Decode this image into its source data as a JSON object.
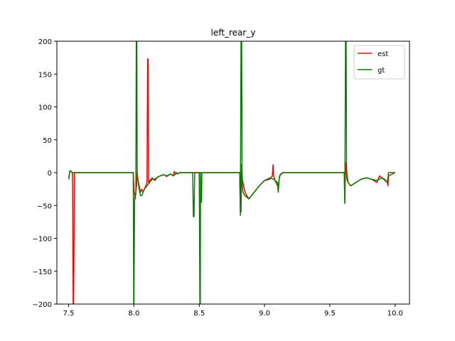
{
  "chart_data": {
    "type": "line",
    "title": "left_rear_y",
    "xlabel": "",
    "ylabel": "",
    "xlim": [
      7.41,
      10.11
    ],
    "ylim": [
      -200,
      200
    ],
    "xticks": [
      7.5,
      8.0,
      8.5,
      9.0,
      9.5,
      10.0
    ],
    "xtick_labels": [
      "7.5",
      "8.0",
      "8.5",
      "9.0",
      "9.5",
      "10.0"
    ],
    "yticks": [
      -200,
      -150,
      -100,
      -50,
      0,
      50,
      100,
      150,
      200
    ],
    "ytick_labels": [
      "−200",
      "−150",
      "−100",
      "−50",
      "0",
      "50",
      "100",
      "150",
      "200"
    ],
    "grid": false,
    "legend_position": "top-right",
    "series": [
      {
        "name": "est",
        "color": "#ff0000",
        "x": [
          7.5,
          7.51,
          7.52,
          7.53,
          7.535,
          7.538,
          7.545,
          7.55,
          7.6,
          7.7,
          7.8,
          7.9,
          7.995,
          8.0,
          8.01,
          8.02,
          8.025,
          8.03,
          8.04,
          8.05,
          8.06,
          8.07,
          8.08,
          8.09,
          8.1,
          8.105,
          8.108,
          8.112,
          8.12,
          8.14,
          8.16,
          8.18,
          8.2,
          8.23,
          8.25,
          8.28,
          8.3,
          8.31,
          8.32,
          8.33,
          8.335,
          8.35,
          8.4,
          8.5,
          8.6,
          8.7,
          8.81,
          8.815,
          8.82,
          8.825,
          8.83,
          8.85,
          8.88,
          8.92,
          8.96,
          9.0,
          9.04,
          9.06,
          9.065,
          9.07,
          9.08,
          9.1,
          9.105,
          9.11,
          9.12,
          9.14,
          9.15,
          9.3,
          9.5,
          9.61,
          9.615,
          9.62,
          9.625,
          9.63,
          9.64,
          9.66,
          9.7,
          9.74,
          9.78,
          9.82,
          9.86,
          9.88,
          9.9,
          9.92,
          9.94,
          9.945,
          9.95,
          10.0
        ],
        "y": [
          -10,
          3,
          2,
          -2,
          -200,
          -200,
          0,
          0,
          0,
          0,
          0,
          0,
          0,
          -25,
          -40,
          -20,
          0,
          -10,
          -20,
          -30,
          -25,
          -30,
          -25,
          -20,
          -15,
          173,
          173,
          -15,
          -12,
          -8,
          -12,
          -7,
          -5,
          -3,
          -6,
          -2,
          -5,
          2,
          -2,
          0,
          -2,
          0,
          0,
          0,
          0,
          0,
          0,
          -60,
          -60,
          12,
          -10,
          -30,
          -40,
          -30,
          -20,
          -12,
          -10,
          -5,
          12,
          -5,
          -12,
          -20,
          -28,
          -12,
          -3,
          0,
          0,
          0,
          0,
          0,
          -45,
          15,
          10,
          -10,
          -15,
          -20,
          -15,
          -10,
          -8,
          -10,
          -15,
          -5,
          -8,
          -10,
          -15,
          -20,
          -5,
          0
        ]
      },
      {
        "name": "gt",
        "color": "#008000",
        "x": [
          7.5,
          7.51,
          7.52,
          7.53,
          7.54,
          7.6,
          7.7,
          7.8,
          7.9,
          7.995,
          7.998,
          8.0,
          8.005,
          8.015,
          8.018,
          8.022,
          8.025,
          8.03,
          8.04,
          8.05,
          8.06,
          8.07,
          8.08,
          8.1,
          8.12,
          8.14,
          8.16,
          8.18,
          8.2,
          8.23,
          8.25,
          8.28,
          8.3,
          8.32,
          8.33,
          8.335,
          8.35,
          8.45,
          8.455,
          8.46,
          8.465,
          8.5,
          8.505,
          8.508,
          8.51,
          8.515,
          8.518,
          8.52,
          8.6,
          8.7,
          8.81,
          8.815,
          8.82,
          8.825,
          8.828,
          8.83,
          8.835,
          8.85,
          8.88,
          8.92,
          8.96,
          9.0,
          9.04,
          9.07,
          9.1,
          9.105,
          9.11,
          9.115,
          9.14,
          9.15,
          9.3,
          9.5,
          9.61,
          9.615,
          9.62,
          9.625,
          9.628,
          9.63,
          9.64,
          9.66,
          9.7,
          9.74,
          9.78,
          9.82,
          9.86,
          9.9,
          9.94,
          9.95,
          10.0
        ],
        "y": [
          -10,
          3,
          2,
          0,
          0,
          0,
          0,
          0,
          0,
          0,
          -200,
          -200,
          -40,
          -30,
          200,
          200,
          0,
          -10,
          -25,
          -35,
          -35,
          -30,
          -25,
          -20,
          -15,
          -10,
          -10,
          -7,
          -5,
          -3,
          -5,
          -2,
          -5,
          -2,
          0,
          -2,
          0,
          0,
          -67,
          -67,
          0,
          0,
          -200,
          -200,
          0,
          -45,
          -45,
          0,
          0,
          0,
          0,
          -65,
          200,
          200,
          -10,
          -20,
          -30,
          -35,
          -40,
          -30,
          -20,
          -12,
          -8,
          -10,
          -15,
          -30,
          -15,
          -5,
          0,
          0,
          0,
          0,
          0,
          -47,
          200,
          200,
          10,
          0,
          -15,
          -20,
          -15,
          -10,
          -8,
          -10,
          -12,
          -8,
          -15,
          0,
          0
        ]
      }
    ]
  }
}
